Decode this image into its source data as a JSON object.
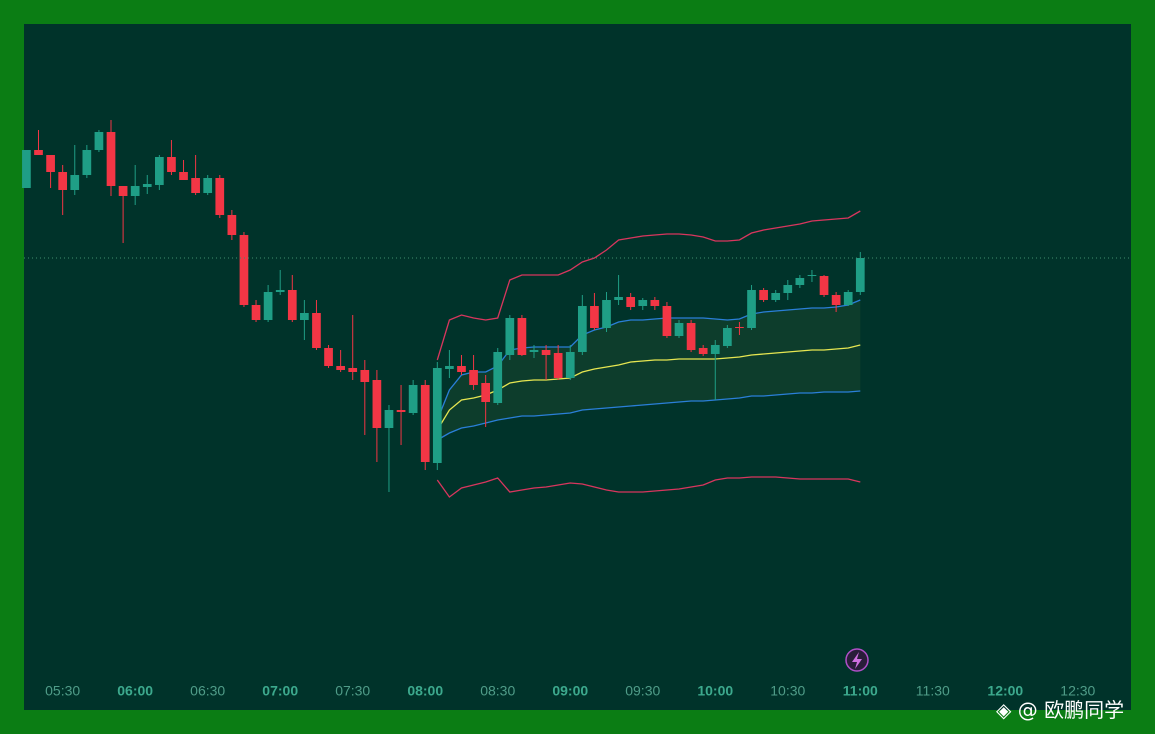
{
  "chart_data": {
    "type": "candlestick",
    "up_color": "#1f9e86",
    "down_color": "#f23645",
    "ylim": [
      -10,
      676
    ],
    "xlim": [
      -0.2,
      91.4
    ],
    "xticks": [
      {
        "value": 3,
        "label": "05:30"
      },
      {
        "value": 9,
        "label": "06:00"
      },
      {
        "value": 15,
        "label": "06:30"
      },
      {
        "value": 21,
        "label": "07:00"
      },
      {
        "value": 27,
        "label": "07:30"
      },
      {
        "value": 33,
        "label": "08:00"
      },
      {
        "value": 39,
        "label": "08:30"
      },
      {
        "value": 45,
        "label": "09:00"
      },
      {
        "value": 51,
        "label": "09:30"
      },
      {
        "value": 57,
        "label": "10:00"
      },
      {
        "value": 63,
        "label": "10:30"
      },
      {
        "value": 69,
        "label": "11:00"
      },
      {
        "value": 75,
        "label": "11:30"
      },
      {
        "value": 81,
        "label": "12:00"
      },
      {
        "value": 87,
        "label": "12:30"
      }
    ],
    "candles": [
      {
        "o": 512,
        "h": 550,
        "l": 512,
        "c": 550
      },
      {
        "o": 550,
        "h": 570,
        "l": 545,
        "c": 545
      },
      {
        "o": 545,
        "h": 545,
        "l": 512,
        "c": 528
      },
      {
        "o": 528,
        "h": 535,
        "l": 485,
        "c": 510
      },
      {
        "o": 510,
        "h": 555,
        "l": 505,
        "c": 525
      },
      {
        "o": 525,
        "h": 555,
        "l": 522,
        "c": 550
      },
      {
        "o": 550,
        "h": 570,
        "l": 548,
        "c": 568
      },
      {
        "o": 568,
        "h": 580,
        "l": 504,
        "c": 514
      },
      {
        "o": 514,
        "h": 514,
        "l": 457,
        "c": 504
      },
      {
        "o": 504,
        "h": 535,
        "l": 495,
        "c": 514
      },
      {
        "o": 513,
        "h": 525,
        "l": 506,
        "c": 516
      },
      {
        "o": 515,
        "h": 545,
        "l": 510,
        "c": 543
      },
      {
        "o": 543,
        "h": 560,
        "l": 525,
        "c": 528
      },
      {
        "o": 528,
        "h": 540,
        "l": 520,
        "c": 520
      },
      {
        "o": 522,
        "h": 545,
        "l": 505,
        "c": 507
      },
      {
        "o": 507,
        "h": 525,
        "l": 505,
        "c": 522
      },
      {
        "o": 522,
        "h": 525,
        "l": 482,
        "c": 485
      },
      {
        "o": 485,
        "h": 490,
        "l": 460,
        "c": 465
      },
      {
        "o": 465,
        "h": 468,
        "l": 393,
        "c": 395
      },
      {
        "o": 395,
        "h": 400,
        "l": 378,
        "c": 380
      },
      {
        "o": 380,
        "h": 415,
        "l": 378,
        "c": 408
      },
      {
        "o": 408,
        "h": 430,
        "l": 405,
        "c": 410
      },
      {
        "o": 410,
        "h": 425,
        "l": 378,
        "c": 380
      },
      {
        "o": 380,
        "h": 400,
        "l": 360,
        "c": 387
      },
      {
        "o": 387,
        "h": 400,
        "l": 350,
        "c": 352
      },
      {
        "o": 352,
        "h": 355,
        "l": 332,
        "c": 334
      },
      {
        "o": 334,
        "h": 350,
        "l": 328,
        "c": 330
      },
      {
        "o": 332,
        "h": 385,
        "l": 320,
        "c": 328
      },
      {
        "o": 330,
        "h": 340,
        "l": 265,
        "c": 318
      },
      {
        "o": 320,
        "h": 330,
        "l": 238,
        "c": 272
      },
      {
        "o": 272,
        "h": 295,
        "l": 208,
        "c": 290
      },
      {
        "o": 290,
        "h": 315,
        "l": 255,
        "c": 288
      },
      {
        "o": 287,
        "h": 320,
        "l": 285,
        "c": 315
      },
      {
        "o": 315,
        "h": 320,
        "l": 230,
        "c": 238
      },
      {
        "o": 237,
        "h": 338,
        "l": 230,
        "c": 332
      },
      {
        "o": 331,
        "h": 350,
        "l": 322,
        "c": 334
      },
      {
        "o": 334,
        "h": 345,
        "l": 325,
        "c": 328
      },
      {
        "o": 330,
        "h": 345,
        "l": 310,
        "c": 315
      },
      {
        "o": 317,
        "h": 325,
        "l": 273,
        "c": 298
      },
      {
        "o": 297,
        "h": 352,
        "l": 295,
        "c": 348
      },
      {
        "o": 345,
        "h": 385,
        "l": 340,
        "c": 382
      },
      {
        "o": 382,
        "h": 385,
        "l": 344,
        "c": 345
      },
      {
        "o": 348,
        "h": 355,
        "l": 342,
        "c": 350
      },
      {
        "o": 350,
        "h": 355,
        "l": 320,
        "c": 345
      },
      {
        "o": 347,
        "h": 355,
        "l": 320,
        "c": 322
      },
      {
        "o": 322,
        "h": 355,
        "l": 320,
        "c": 348
      },
      {
        "o": 348,
        "h": 405,
        "l": 345,
        "c": 394
      },
      {
        "o": 394,
        "h": 407,
        "l": 370,
        "c": 372
      },
      {
        "o": 372,
        "h": 408,
        "l": 368,
        "c": 400
      },
      {
        "o": 400,
        "h": 425,
        "l": 395,
        "c": 403
      },
      {
        "o": 403,
        "h": 407,
        "l": 390,
        "c": 393
      },
      {
        "o": 394,
        "h": 402,
        "l": 390,
        "c": 400
      },
      {
        "o": 400,
        "h": 403,
        "l": 390,
        "c": 394
      },
      {
        "o": 394,
        "h": 398,
        "l": 362,
        "c": 364
      },
      {
        "o": 364,
        "h": 380,
        "l": 362,
        "c": 377
      },
      {
        "o": 377,
        "h": 380,
        "l": 348,
        "c": 350
      },
      {
        "o": 352,
        "h": 355,
        "l": 344,
        "c": 346
      },
      {
        "o": 346,
        "h": 360,
        "l": 300,
        "c": 355
      },
      {
        "o": 354,
        "h": 375,
        "l": 352,
        "c": 372
      },
      {
        "o": 373,
        "h": 378,
        "l": 365,
        "c": 372
      },
      {
        "o": 372,
        "h": 415,
        "l": 370,
        "c": 410
      },
      {
        "o": 410,
        "h": 412,
        "l": 398,
        "c": 400
      },
      {
        "o": 400,
        "h": 410,
        "l": 398,
        "c": 407
      },
      {
        "o": 407,
        "h": 420,
        "l": 400,
        "c": 415
      },
      {
        "o": 415,
        "h": 425,
        "l": 412,
        "c": 422
      },
      {
        "o": 424,
        "h": 430,
        "l": 418,
        "c": 425
      },
      {
        "o": 424,
        "h": 425,
        "l": 403,
        "c": 405
      },
      {
        "o": 405,
        "h": 408,
        "l": 388,
        "c": 395
      },
      {
        "o": 395,
        "h": 410,
        "l": 394,
        "c": 408
      },
      {
        "o": 408,
        "h": 448,
        "l": 405,
        "c": 442
      }
    ],
    "series": [
      {
        "color": "#d8365e",
        "values": [
          null,
          null,
          null,
          null,
          null,
          null,
          null,
          null,
          null,
          null,
          null,
          null,
          null,
          null,
          null,
          null,
          null,
          null,
          null,
          null,
          null,
          null,
          null,
          null,
          null,
          null,
          null,
          null,
          null,
          null,
          null,
          null,
          null,
          null,
          340,
          380,
          385,
          382,
          380,
          382,
          420,
          425,
          425,
          425,
          425,
          430,
          438,
          442,
          450,
          460,
          462,
          464,
          465,
          466,
          466,
          465,
          463,
          459,
          459,
          460,
          467,
          470,
          472,
          474,
          476,
          479,
          480,
          481,
          482,
          489
        ]
      },
      {
        "color": "#2a7fd8",
        "values": [
          null,
          null,
          null,
          null,
          null,
          null,
          null,
          null,
          null,
          null,
          null,
          null,
          null,
          null,
          null,
          null,
          null,
          null,
          null,
          null,
          null,
          null,
          null,
          null,
          null,
          null,
          null,
          null,
          null,
          null,
          null,
          null,
          null,
          null,
          280,
          310,
          325,
          328,
          328,
          334,
          350,
          352,
          353,
          353,
          353,
          353,
          365,
          370,
          373,
          378,
          380,
          380,
          381,
          382,
          382,
          382,
          382,
          381,
          380,
          381,
          386,
          388,
          389,
          390,
          391,
          392,
          392,
          393,
          395,
          400
        ]
      },
      {
        "color": "#e6e651",
        "values": [
          null,
          null,
          null,
          null,
          null,
          null,
          null,
          null,
          null,
          null,
          null,
          null,
          null,
          null,
          null,
          null,
          null,
          null,
          null,
          null,
          null,
          null,
          null,
          null,
          null,
          null,
          null,
          null,
          null,
          null,
          null,
          null,
          null,
          null,
          270,
          290,
          300,
          302,
          305,
          310,
          317,
          319,
          320,
          320,
          321,
          322,
          328,
          331,
          333,
          335,
          338,
          339,
          340,
          340,
          341,
          341,
          341,
          341,
          342,
          343,
          345,
          346,
          347,
          348,
          349,
          350,
          350,
          351,
          352,
          355
        ]
      },
      {
        "color": "#2a7fd8",
        "values": [
          null,
          null,
          null,
          null,
          null,
          null,
          null,
          null,
          null,
          null,
          null,
          null,
          null,
          null,
          null,
          null,
          null,
          null,
          null,
          null,
          null,
          null,
          null,
          null,
          null,
          null,
          null,
          null,
          null,
          null,
          null,
          null,
          null,
          null,
          260,
          267,
          272,
          274,
          277,
          280,
          282,
          284,
          284,
          285,
          286,
          287,
          290,
          291,
          292,
          293,
          294,
          295,
          296,
          297,
          298,
          299,
          299,
          300,
          301,
          302,
          304,
          304,
          305,
          306,
          307,
          307,
          308,
          308,
          308,
          309
        ]
      },
      {
        "color": "#d8365e",
        "values": [
          null,
          null,
          null,
          null,
          null,
          null,
          null,
          null,
          null,
          null,
          null,
          null,
          null,
          null,
          null,
          null,
          null,
          null,
          null,
          null,
          null,
          null,
          null,
          null,
          null,
          null,
          null,
          null,
          null,
          null,
          null,
          null,
          null,
          null,
          220,
          203,
          212,
          215,
          218,
          222,
          208,
          210,
          212,
          213,
          215,
          217,
          216,
          213,
          210,
          208,
          208,
          208,
          209,
          210,
          211,
          213,
          215,
          220,
          222,
          222,
          223,
          223,
          223,
          222,
          221,
          221,
          221,
          221,
          221,
          218
        ]
      }
    ]
  },
  "watermark": "@ 欧鹏同学"
}
